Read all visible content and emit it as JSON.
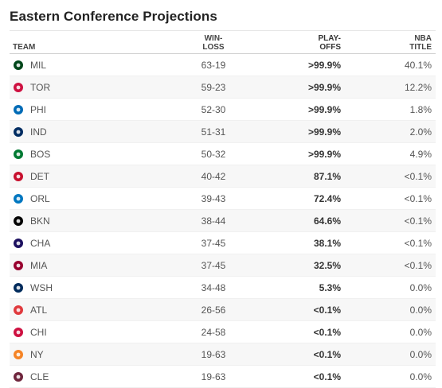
{
  "title": "Eastern Conference Projections",
  "columns": {
    "team": "TEAM",
    "winloss_1": "WIN-",
    "winloss_2": "LOSS",
    "playoffs_1": "PLAY-",
    "playoffs_2": "OFFS",
    "title_1": "NBA",
    "title_2": "TITLE"
  },
  "rows": [
    {
      "team": "MIL",
      "record": "63-19",
      "playoffs": ">99.9%",
      "title": "40.1%",
      "logo": "bucks-logo-icon",
      "color": "#00471B"
    },
    {
      "team": "TOR",
      "record": "59-23",
      "playoffs": ">99.9%",
      "title": "12.2%",
      "logo": "raptors-logo-icon",
      "color": "#CE1141"
    },
    {
      "team": "PHI",
      "record": "52-30",
      "playoffs": ">99.9%",
      "title": "1.8%",
      "logo": "76ers-logo-icon",
      "color": "#006BB6"
    },
    {
      "team": "IND",
      "record": "51-31",
      "playoffs": ">99.9%",
      "title": "2.0%",
      "logo": "pacers-logo-icon",
      "color": "#002D62"
    },
    {
      "team": "BOS",
      "record": "50-32",
      "playoffs": ">99.9%",
      "title": "4.9%",
      "logo": "celtics-logo-icon",
      "color": "#007A33"
    },
    {
      "team": "DET",
      "record": "40-42",
      "playoffs": "87.1%",
      "title": "<0.1%",
      "logo": "pistons-logo-icon",
      "color": "#C8102E"
    },
    {
      "team": "ORL",
      "record": "39-43",
      "playoffs": "72.4%",
      "title": "<0.1%",
      "logo": "magic-logo-icon",
      "color": "#0077C0"
    },
    {
      "team": "BKN",
      "record": "38-44",
      "playoffs": "64.6%",
      "title": "<0.1%",
      "logo": "nets-logo-icon",
      "color": "#000000"
    },
    {
      "team": "CHA",
      "record": "37-45",
      "playoffs": "38.1%",
      "title": "<0.1%",
      "logo": "hornets-logo-icon",
      "color": "#1D1160"
    },
    {
      "team": "MIA",
      "record": "37-45",
      "playoffs": "32.5%",
      "title": "<0.1%",
      "logo": "heat-logo-icon",
      "color": "#98002E"
    },
    {
      "team": "WSH",
      "record": "34-48",
      "playoffs": "5.3%",
      "title": "0.0%",
      "logo": "wizards-logo-icon",
      "color": "#002B5C"
    },
    {
      "team": "ATL",
      "record": "26-56",
      "playoffs": "<0.1%",
      "title": "0.0%",
      "logo": "hawks-logo-icon",
      "color": "#E03A3E"
    },
    {
      "team": "CHI",
      "record": "24-58",
      "playoffs": "<0.1%",
      "title": "0.0%",
      "logo": "bulls-logo-icon",
      "color": "#CE1141"
    },
    {
      "team": "NY",
      "record": "19-63",
      "playoffs": "<0.1%",
      "title": "0.0%",
      "logo": "knicks-logo-icon",
      "color": "#F58426"
    },
    {
      "team": "CLE",
      "record": "19-63",
      "playoffs": "<0.1%",
      "title": "0.0%",
      "logo": "cavaliers-logo-icon",
      "color": "#6F263D"
    }
  ]
}
